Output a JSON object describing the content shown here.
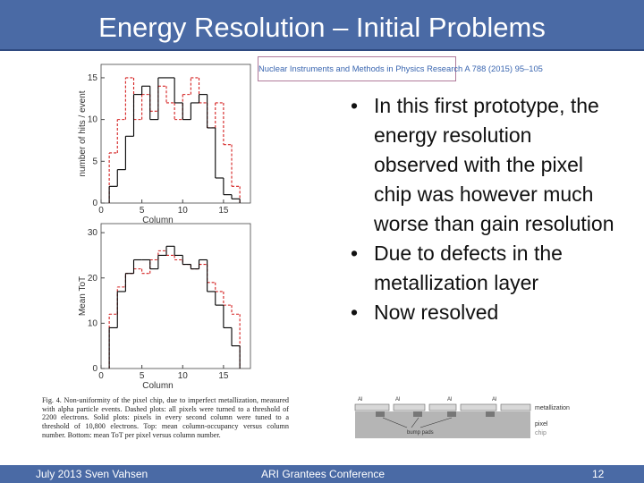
{
  "header": {
    "title": "Energy Resolution – Initial Problems"
  },
  "citation": "Nuclear Instruments and Methods in Physics Research A 788 (2015) 95–105",
  "figure": {
    "charts": [
      {
        "type": "step",
        "y_label": "number of hits / event",
        "x_label": "Column",
        "xlim": [
          0,
          18.3
        ],
        "ylim": [
          0,
          16.6
        ],
        "xticks": [
          0,
          5,
          10,
          15
        ],
        "yticks": [
          0,
          5,
          10,
          15
        ],
        "bins": [
          1,
          2,
          3,
          4,
          5,
          6,
          7,
          8,
          9,
          10,
          11,
          12,
          13,
          14,
          15,
          16,
          17
        ],
        "series": [
          {
            "style": "dashed",
            "color": "#d42020",
            "values": [
              6,
              10,
              15,
              10,
              13,
              11,
              14,
              12,
              10,
              13,
              15,
              12,
              9,
              12,
              7,
              2
            ]
          },
          {
            "style": "solid",
            "color": "#000000",
            "values": [
              2,
              4,
              8,
              13,
              14,
              10,
              15,
              15,
              12,
              10,
              12,
              13,
              9,
              3,
              1,
              0.5
            ]
          }
        ]
      },
      {
        "type": "step",
        "y_label": "Mean ToT",
        "x_label": "Column",
        "xlim": [
          0,
          18.3
        ],
        "ylim": [
          0,
          32
        ],
        "xticks": [
          0,
          5,
          10,
          15
        ],
        "yticks": [
          0,
          10,
          20,
          30
        ],
        "bins": [
          1,
          2,
          3,
          4,
          5,
          6,
          7,
          8,
          9,
          10,
          11,
          12,
          13,
          14,
          15,
          16,
          17
        ],
        "series": [
          {
            "style": "dashed",
            "color": "#d42020",
            "values": [
              12,
              18,
              21,
              22,
              21,
              24,
              26,
              25,
              24,
              23,
              22,
              23,
              19,
              17,
              14,
              12
            ]
          },
          {
            "style": "solid",
            "color": "#000000",
            "values": [
              9,
              17,
              21,
              24,
              24,
              22,
              25,
              27,
              25,
              23,
              22,
              24,
              17,
              14,
              9,
              5
            ]
          }
        ]
      }
    ],
    "caption": "Fig. 4. Non-uniformity of the pixel chip, due to imperfect metallization, measured with alpha particle events. Dashed plots: all pixels were turned to a threshold of 2200 electrons. Solid plots: pixels in every second column were tuned to a threshold of 10,800 electrons. Top: mean column-occupancy versus column number. Bottom: mean ToT per pixel versus column number."
  },
  "bullets": [
    "In this first prototype, the energy resolution observed with the pixel chip was however much worse than gain resolution",
    "Due to defects in the metallization layer",
    "Now resolved"
  ],
  "diagram": {
    "al_labels": [
      "Al",
      "Al",
      "Al",
      "Al"
    ],
    "metallization": "metallization",
    "pixel": "pixel",
    "chip": "chip",
    "bump_pads": "bump pads"
  },
  "footer": {
    "left": "July 2013 Sven Vahsen",
    "center": "ARI Grantees Conference",
    "right": "12"
  }
}
